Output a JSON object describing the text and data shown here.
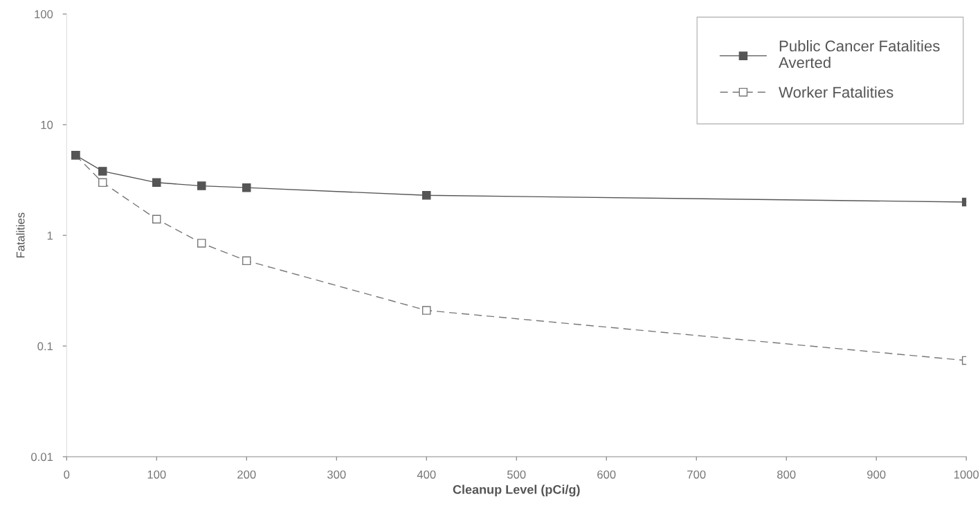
{
  "chart_data": {
    "type": "line",
    "xlabel": "Cleanup Level (pCi/g)",
    "ylabel": "Fatalities",
    "x": [
      10,
      40,
      100,
      150,
      200,
      400,
      1000
    ],
    "series": [
      {
        "name": "Public Cancer Fatalities\nAverted",
        "color": "#555555",
        "values": [
          5.3,
          3.8,
          3.0,
          2.8,
          2.7,
          2.3,
          2.0
        ],
        "marker": "square",
        "line_style": "solid"
      },
      {
        "name": "Worker Fatalities",
        "color": "#777777",
        "values": [
          5.3,
          3.0,
          1.4,
          0.85,
          0.59,
          0.21,
          0.074
        ],
        "marker": "square",
        "line_style": "dashed"
      }
    ],
    "xlim": [
      0,
      1000
    ],
    "xticks": [
      0,
      100,
      200,
      300,
      400,
      500,
      600,
      700,
      800,
      900,
      1000
    ],
    "ylim": [
      0.01,
      100
    ],
    "yticks": [
      0.01,
      0.1,
      1,
      10,
      100
    ],
    "log": "y",
    "grid": false,
    "legend": "top right"
  }
}
